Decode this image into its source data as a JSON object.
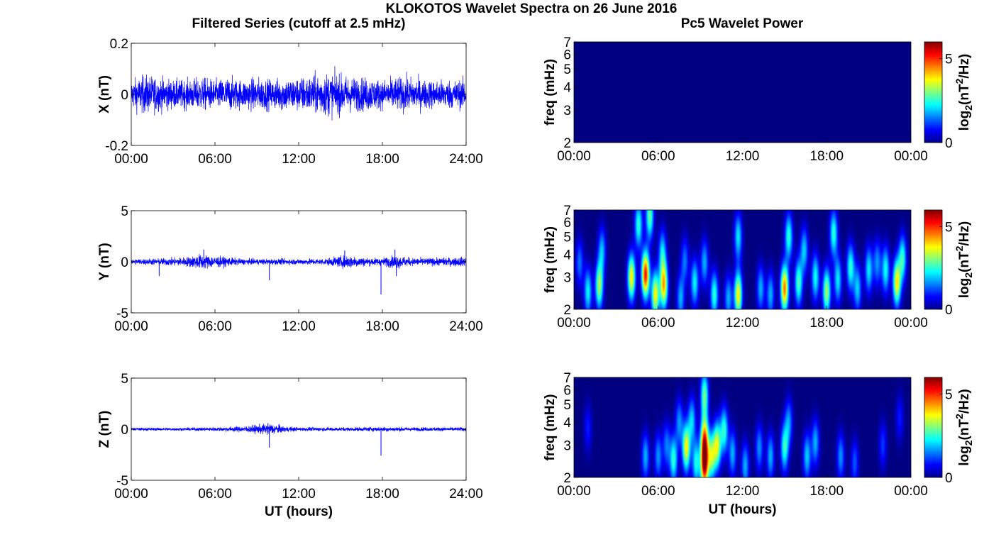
{
  "figure": {
    "suptitle": "KLOKOTOS Wavelet Spectra on 26 June 2016",
    "left_title": "Filtered Series (cutoff at 2.5 mHz)",
    "right_title": "Pc5 Wavelet Power",
    "xlabel": "UT (hours)"
  },
  "colors": {
    "trace": "#0000ff",
    "background": "#ffffff",
    "colormap": "jet",
    "min_color": "#00008f"
  },
  "chart_data": [
    {
      "type": "line",
      "title": "Filtered Series (cutoff at 2.5 mHz)",
      "ylabel": "X (nT)",
      "xlabel": "",
      "xlim": [
        0,
        24
      ],
      "xticks": [
        "00:00",
        "06:00",
        "12:00",
        "18:00",
        "24:00"
      ],
      "ylim": [
        -0.2,
        0.2
      ],
      "yticks": [
        "-0.2",
        "0",
        "0.2"
      ],
      "envelope_hours": [
        0,
        1,
        2,
        3,
        4,
        5,
        6,
        7,
        8,
        9,
        10,
        11,
        12,
        13,
        14,
        15,
        16,
        17,
        18,
        19,
        20,
        21,
        22,
        23,
        24
      ],
      "envelope_amplitude": [
        0.06,
        0.08,
        0.07,
        0.06,
        0.06,
        0.07,
        0.06,
        0.07,
        0.06,
        0.07,
        0.06,
        0.07,
        0.07,
        0.08,
        0.09,
        0.08,
        0.07,
        0.07,
        0.06,
        0.07,
        0.07,
        0.06,
        0.06,
        0.06,
        0.06
      ],
      "spikes": []
    },
    {
      "type": "line",
      "title": "",
      "ylabel": "Y (nT)",
      "xlabel": "",
      "xlim": [
        0,
        24
      ],
      "xticks": [
        "00:00",
        "06:00",
        "12:00",
        "18:00",
        "24:00"
      ],
      "ylim": [
        -5,
        5
      ],
      "yticks": [
        "-5",
        "0",
        "5"
      ],
      "envelope_hours": [
        0,
        2,
        4,
        5,
        6,
        8,
        10,
        12,
        14,
        15.5,
        17,
        18,
        19,
        20,
        22,
        24
      ],
      "envelope_amplitude": [
        0.3,
        0.35,
        0.5,
        0.8,
        0.6,
        0.3,
        0.3,
        0.3,
        0.35,
        0.7,
        0.4,
        0.4,
        0.7,
        0.4,
        0.4,
        0.5
      ],
      "spikes": [
        {
          "hour": 2.0,
          "value": -1.4
        },
        {
          "hour": 5.2,
          "value": 1.2
        },
        {
          "hour": 9.9,
          "value": -1.8
        },
        {
          "hour": 15.3,
          "value": 1.1
        },
        {
          "hour": 17.9,
          "value": -3.2
        },
        {
          "hour": 18.9,
          "value": 1.2
        },
        {
          "hour": 19.0,
          "value": -1.4
        }
      ]
    },
    {
      "type": "line",
      "title": "",
      "ylabel": "Z (nT)",
      "xlabel": "UT (hours)",
      "xlim": [
        0,
        24
      ],
      "xticks": [
        "00:00",
        "06:00",
        "12:00",
        "18:00",
        "24:00"
      ],
      "ylim": [
        -5,
        5
      ],
      "yticks": [
        "-5",
        "0",
        "5"
      ],
      "envelope_hours": [
        0,
        2,
        4,
        6,
        8,
        9,
        10,
        11,
        12,
        14,
        16,
        18,
        20,
        22,
        24
      ],
      "envelope_amplitude": [
        0.15,
        0.15,
        0.15,
        0.2,
        0.3,
        0.45,
        0.6,
        0.3,
        0.2,
        0.2,
        0.2,
        0.25,
        0.2,
        0.2,
        0.2
      ],
      "spikes": [
        {
          "hour": 9.8,
          "value": 0.6
        },
        {
          "hour": 9.9,
          "value": -1.8
        },
        {
          "hour": 17.9,
          "value": -2.6
        }
      ]
    },
    {
      "type": "heatmap",
      "title": "Pc5 Wavelet Power",
      "ylabel": "freq (mHz)",
      "xlabel": "",
      "scale": "log2 frequency",
      "xlim_hours": [
        0,
        24
      ],
      "xticks": [
        "00:00",
        "06:00",
        "12:00",
        "18:00",
        "00:00"
      ],
      "ylim": [
        2,
        7
      ],
      "yticks": [
        "2",
        "3",
        "4",
        "5",
        "6",
        "7"
      ],
      "colorbar_label_main": "log",
      "colorbar_label_sub": "2",
      "colorbar_label_rest": "(nT",
      "colorbar_label_sup": "2",
      "colorbar_label_tail": "/Hz)",
      "colorbar_ticks": [
        "0",
        "5"
      ],
      "clim": [
        0,
        6
      ],
      "blobs": []
    },
    {
      "type": "heatmap",
      "title": "",
      "ylabel": "freq (mHz)",
      "xlabel": "",
      "scale": "log2 frequency",
      "xlim_hours": [
        0,
        24
      ],
      "xticks": [
        "00:00",
        "06:00",
        "12:00",
        "18:00",
        "00:00"
      ],
      "ylim": [
        2,
        7
      ],
      "yticks": [
        "2",
        "3",
        "4",
        "5",
        "6",
        "7"
      ],
      "colorbar_label_main": "log",
      "colorbar_label_sub": "2",
      "colorbar_label_rest": "(nT",
      "colorbar_label_sup": "2",
      "colorbar_label_tail": "/Hz)",
      "colorbar_ticks": [
        "0",
        "5"
      ],
      "clim": [
        0,
        6
      ],
      "blobs": [
        {
          "hour": 0.4,
          "freq": 3.6,
          "power": 1.6
        },
        {
          "hour": 1.0,
          "freq": 2.5,
          "power": 2.5
        },
        {
          "hour": 1.8,
          "freq": 2.7,
          "power": 3.6
        },
        {
          "hour": 2.0,
          "freq": 4.2,
          "power": 2.0
        },
        {
          "hour": 4.1,
          "freq": 3.0,
          "power": 4.3
        },
        {
          "hour": 4.6,
          "freq": 5.8,
          "power": 2.8
        },
        {
          "hour": 5.1,
          "freq": 3.1,
          "power": 5.8
        },
        {
          "hour": 5.4,
          "freq": 6.5,
          "power": 3.2
        },
        {
          "hour": 5.8,
          "freq": 2.4,
          "power": 4.2
        },
        {
          "hour": 6.4,
          "freq": 2.7,
          "power": 4.6
        },
        {
          "hour": 6.3,
          "freq": 4.1,
          "power": 2.2
        },
        {
          "hour": 7.6,
          "freq": 2.3,
          "power": 2.0
        },
        {
          "hour": 7.9,
          "freq": 3.7,
          "power": 1.6
        },
        {
          "hour": 8.6,
          "freq": 2.8,
          "power": 2.5
        },
        {
          "hour": 9.3,
          "freq": 3.6,
          "power": 2.0
        },
        {
          "hour": 10.0,
          "freq": 2.4,
          "power": 2.8
        },
        {
          "hour": 11.0,
          "freq": 2.3,
          "power": 2.0
        },
        {
          "hour": 11.7,
          "freq": 2.4,
          "power": 4.3
        },
        {
          "hour": 11.7,
          "freq": 5.0,
          "power": 2.4
        },
        {
          "hour": 13.3,
          "freq": 2.6,
          "power": 2.0
        },
        {
          "hour": 14.0,
          "freq": 2.4,
          "power": 2.0
        },
        {
          "hour": 15.0,
          "freq": 2.6,
          "power": 5.1
        },
        {
          "hour": 15.3,
          "freq": 5.0,
          "power": 2.8
        },
        {
          "hour": 16.0,
          "freq": 2.8,
          "power": 3.0
        },
        {
          "hour": 16.4,
          "freq": 4.2,
          "power": 2.2
        },
        {
          "hour": 17.2,
          "freq": 3.0,
          "power": 2.6
        },
        {
          "hour": 18.0,
          "freq": 2.5,
          "power": 3.6
        },
        {
          "hour": 18.5,
          "freq": 5.2,
          "power": 2.8
        },
        {
          "hour": 18.8,
          "freq": 2.9,
          "power": 2.4
        },
        {
          "hour": 19.7,
          "freq": 3.4,
          "power": 2.8
        },
        {
          "hour": 20.2,
          "freq": 2.6,
          "power": 2.2
        },
        {
          "hour": 21.0,
          "freq": 3.3,
          "power": 2.4
        },
        {
          "hour": 21.6,
          "freq": 3.6,
          "power": 1.8
        },
        {
          "hour": 22.2,
          "freq": 3.3,
          "power": 2.6
        },
        {
          "hour": 23.0,
          "freq": 2.8,
          "power": 4.3
        },
        {
          "hour": 23.4,
          "freq": 3.8,
          "power": 2.8
        }
      ]
    },
    {
      "type": "heatmap",
      "title": "",
      "ylabel": "freq (mHz)",
      "xlabel": "UT (hours)",
      "scale": "log2 frequency",
      "xlim_hours": [
        0,
        24
      ],
      "xticks": [
        "00:00",
        "06:00",
        "12:00",
        "18:00",
        "00:00"
      ],
      "ylim": [
        2,
        7
      ],
      "yticks": [
        "2",
        "3",
        "4",
        "5",
        "6",
        "7"
      ],
      "colorbar_label_main": "log",
      "colorbar_label_sub": "2",
      "colorbar_label_rest": "(nT",
      "colorbar_label_sup": "2",
      "colorbar_label_tail": "/Hz)",
      "colorbar_ticks": [
        "0",
        "5"
      ],
      "clim": [
        0,
        6
      ],
      "blobs": [
        {
          "hour": 1.0,
          "freq": 3.7,
          "power": 1.0
        },
        {
          "hour": 5.1,
          "freq": 2.6,
          "power": 2.0
        },
        {
          "hour": 6.0,
          "freq": 2.6,
          "power": 1.8
        },
        {
          "hour": 6.6,
          "freq": 3.0,
          "power": 1.6
        },
        {
          "hour": 7.1,
          "freq": 2.5,
          "power": 2.8
        },
        {
          "hour": 7.5,
          "freq": 4.0,
          "power": 1.8
        },
        {
          "hour": 8.0,
          "freq": 2.9,
          "power": 4.2
        },
        {
          "hour": 8.4,
          "freq": 4.1,
          "power": 2.2
        },
        {
          "hour": 8.7,
          "freq": 2.4,
          "power": 2.6
        },
        {
          "hour": 9.3,
          "freq": 2.3,
          "power": 5.6
        },
        {
          "hour": 9.3,
          "freq": 3.2,
          "power": 4.8
        },
        {
          "hour": 9.3,
          "freq": 5.6,
          "power": 3.2
        },
        {
          "hour": 9.8,
          "freq": 2.6,
          "power": 3.4
        },
        {
          "hour": 10.2,
          "freq": 3.0,
          "power": 3.8
        },
        {
          "hour": 10.7,
          "freq": 3.6,
          "power": 2.8
        },
        {
          "hour": 11.3,
          "freq": 2.7,
          "power": 2.0
        },
        {
          "hour": 12.2,
          "freq": 2.3,
          "power": 2.0
        },
        {
          "hour": 13.2,
          "freq": 2.9,
          "power": 1.8
        },
        {
          "hour": 14.0,
          "freq": 2.6,
          "power": 2.0
        },
        {
          "hour": 15.0,
          "freq": 2.9,
          "power": 2.8
        },
        {
          "hour": 15.3,
          "freq": 4.0,
          "power": 1.8
        },
        {
          "hour": 16.6,
          "freq": 2.6,
          "power": 2.2
        },
        {
          "hour": 17.2,
          "freq": 3.1,
          "power": 2.0
        },
        {
          "hour": 19.0,
          "freq": 2.6,
          "power": 1.8
        },
        {
          "hour": 20.0,
          "freq": 2.4,
          "power": 1.4
        },
        {
          "hour": 22.0,
          "freq": 3.0,
          "power": 1.2
        },
        {
          "hour": 23.2,
          "freq": 4.2,
          "power": 1.0
        }
      ]
    }
  ]
}
